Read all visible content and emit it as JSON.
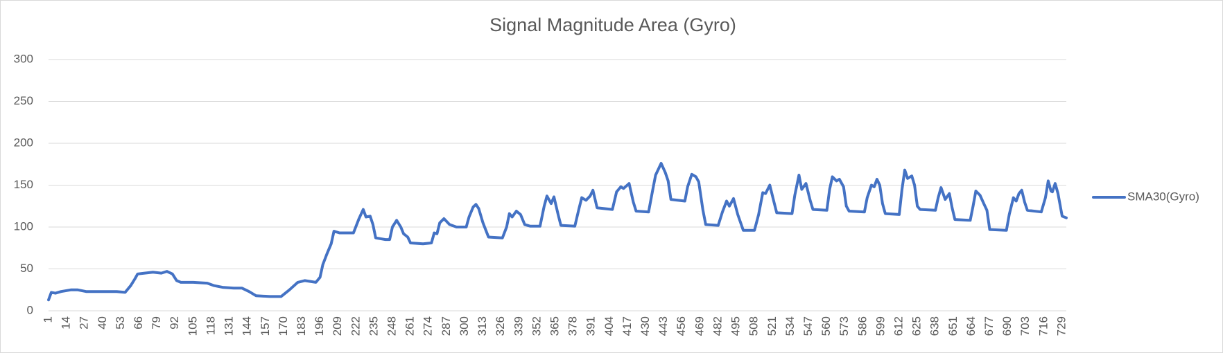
{
  "chart_data": {
    "type": "line",
    "title": "Signal Magnitude Area (Gyro)",
    "x": [
      1,
      3,
      6,
      10,
      17,
      22,
      28,
      40,
      50,
      56,
      60,
      63,
      65,
      70,
      76,
      82,
      86,
      90,
      93,
      96,
      105,
      115,
      120,
      126,
      134,
      140,
      145,
      150,
      160,
      168,
      174,
      180,
      185,
      193,
      196,
      198,
      201,
      204,
      206,
      210,
      220,
      224,
      227,
      229,
      232,
      234,
      236,
      243,
      246,
      248,
      251,
      254,
      256,
      259,
      261,
      270,
      276,
      278,
      280,
      282,
      285,
      289,
      294,
      301,
      303,
      306,
      308,
      310,
      313,
      317,
      327,
      330,
      332,
      334,
      337,
      340,
      343,
      347,
      354,
      357,
      359,
      362,
      364,
      367,
      369,
      379,
      382,
      384,
      387,
      390,
      392,
      395,
      406,
      409,
      412,
      414,
      418,
      421,
      423,
      432,
      435,
      437,
      441,
      444,
      446,
      448,
      458,
      460,
      463,
      466,
      468,
      471,
      473,
      482,
      485,
      488,
      490,
      493,
      496,
      500,
      508,
      511,
      514,
      516,
      519,
      522,
      524,
      535,
      537,
      540,
      542,
      545,
      548,
      550,
      560,
      562,
      564,
      567,
      569,
      572,
      574,
      576,
      587,
      589,
      592,
      594,
      596,
      598,
      600,
      602,
      612,
      614,
      616,
      618,
      621,
      623,
      625,
      627,
      638,
      640,
      642,
      645,
      648,
      650,
      652,
      663,
      665,
      667,
      670,
      673,
      675,
      677,
      689,
      691,
      694,
      696,
      698,
      700,
      702,
      704,
      714,
      717,
      719,
      721,
      722,
      724,
      726,
      729,
      732
    ],
    "series": [
      {
        "name": "SMA30(Gyro)",
        "color": "#4472c4",
        "values": [
          13,
          22,
          21,
          23,
          25,
          25,
          23,
          23,
          23,
          22,
          30,
          38,
          44,
          45,
          46,
          45,
          47,
          44,
          36,
          34,
          34,
          33,
          30,
          28,
          27,
          27,
          23,
          18,
          17,
          17,
          25,
          34,
          36,
          34,
          40,
          55,
          68,
          80,
          95,
          93,
          93,
          110,
          121,
          112,
          113,
          103,
          87,
          85,
          85,
          100,
          108,
          100,
          92,
          88,
          81,
          80,
          81,
          93,
          92,
          105,
          110,
          103,
          100,
          100,
          112,
          124,
          127,
          122,
          105,
          88,
          87,
          100,
          116,
          112,
          119,
          115,
          103,
          101,
          101,
          125,
          137,
          128,
          136,
          115,
          102,
          101,
          122,
          135,
          132,
          137,
          144,
          123,
          121,
          142,
          148,
          146,
          152,
          130,
          119,
          118,
          145,
          162,
          176,
          165,
          155,
          133,
          131,
          148,
          163,
          160,
          154,
          120,
          103,
          102,
          118,
          131,
          125,
          134,
          115,
          96,
          96,
          115,
          141,
          140,
          150,
          130,
          117,
          116,
          138,
          162,
          145,
          152,
          132,
          121,
          120,
          145,
          160,
          155,
          157,
          148,
          125,
          119,
          118,
          135,
          150,
          148,
          157,
          150,
          128,
          116,
          115,
          145,
          168,
          158,
          161,
          150,
          125,
          121,
          120,
          135,
          147,
          133,
          140,
          123,
          109,
          108,
          125,
          143,
          138,
          127,
          120,
          97,
          96,
          115,
          135,
          131,
          140,
          144,
          130,
          120,
          118,
          135,
          155,
          143,
          142,
          152,
          140,
          113,
          111
        ]
      }
    ],
    "xlim": [
      1,
      732
    ],
    "xticks": [
      1,
      14,
      27,
      40,
      53,
      66,
      79,
      92,
      105,
      118,
      131,
      144,
      157,
      170,
      183,
      196,
      209,
      222,
      235,
      248,
      261,
      274,
      287,
      300,
      313,
      326,
      339,
      352,
      365,
      378,
      391,
      404,
      417,
      430,
      443,
      456,
      469,
      482,
      495,
      508,
      521,
      534,
      547,
      560,
      573,
      586,
      599,
      612,
      625,
      638,
      651,
      664,
      677,
      690,
      703,
      716,
      729
    ],
    "ylim": [
      0,
      300
    ],
    "yticks": [
      0,
      50,
      100,
      150,
      200,
      250,
      300
    ],
    "grid": true,
    "legend": "right"
  }
}
